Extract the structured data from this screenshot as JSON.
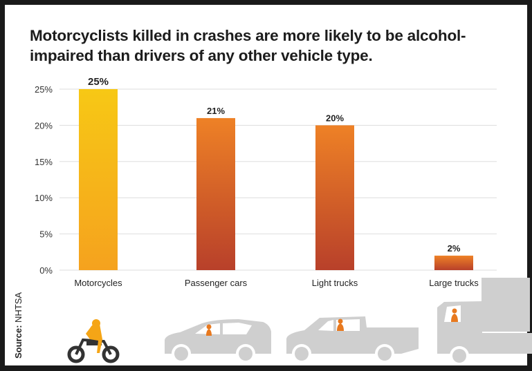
{
  "title": "Motorcyclists killed in crashes are more likely to be alcohol-impaired than drivers of any other vehicle type.",
  "source": {
    "label": "Source:",
    "value": "NHTSA"
  },
  "chart_data": {
    "type": "bar",
    "title": "Motorcyclists killed in crashes are more likely to be alcohol-impaired than drivers of any other vehicle type.",
    "categories": [
      "Motorcycles",
      "Passenger cars",
      "Light trucks",
      "Large trucks"
    ],
    "values": [
      25,
      21,
      20,
      2
    ],
    "data_labels": [
      "25%",
      "21%",
      "20%",
      "2%"
    ],
    "yticks": [
      "0%",
      "5%",
      "10%",
      "15%",
      "20%",
      "25%"
    ],
    "ytick_values": [
      0,
      5,
      10,
      15,
      20,
      25
    ],
    "ylim": [
      0,
      25
    ],
    "xlabel": "",
    "ylabel": "",
    "grid": true,
    "colors": {
      "motorcycles": [
        "#f7c815",
        "#f5a21e"
      ],
      "others": [
        "#ee8126",
        "#b8402a"
      ],
      "grid": "#dddddd",
      "vehicles": "#cfcfcf",
      "driver": "#e8791f"
    }
  },
  "icons": [
    "motorcycle-icon",
    "passenger-car-icon",
    "pickup-truck-icon",
    "large-truck-icon"
  ]
}
